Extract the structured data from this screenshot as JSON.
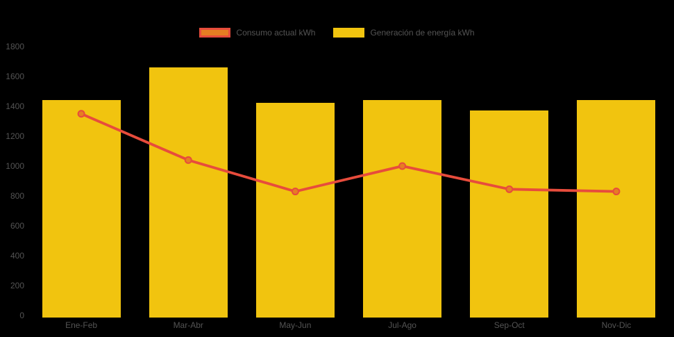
{
  "chart_data": {
    "type": "bar",
    "subtype": "bar-with-line-overlay",
    "title": "",
    "xlabel": "",
    "ylabel": "",
    "categories": [
      "Ene-Feb",
      "Mar-Abr",
      "May-Jun",
      "Jul-Ago",
      "Sep-Oct",
      "Nov-Dic"
    ],
    "series": [
      {
        "name": "Consumo actual kWh",
        "type": "line",
        "values": [
          1350,
          1040,
          830,
          1000,
          845,
          830
        ],
        "line_color": "#E74C3C",
        "marker_fill": "#E67E22",
        "marker_stroke": "#E74C3C"
      },
      {
        "name": "Generación de energía kWh",
        "type": "bar",
        "values": [
          1440,
          1660,
          1425,
          1440,
          1370,
          1440
        ],
        "bar_color": "#F1C40F"
      }
    ],
    "ylim": [
      0,
      1800
    ],
    "y_ticks": [
      0,
      200,
      400,
      600,
      800,
      1000,
      1200,
      1400,
      1600,
      1800
    ],
    "grid": false,
    "legend_position": "top-center",
    "background_color": "#000000",
    "text_color": "#545454"
  },
  "legend": {
    "consumo_label": "Consumo actual kWh",
    "generacion_label": "Generación de energía kWh"
  }
}
